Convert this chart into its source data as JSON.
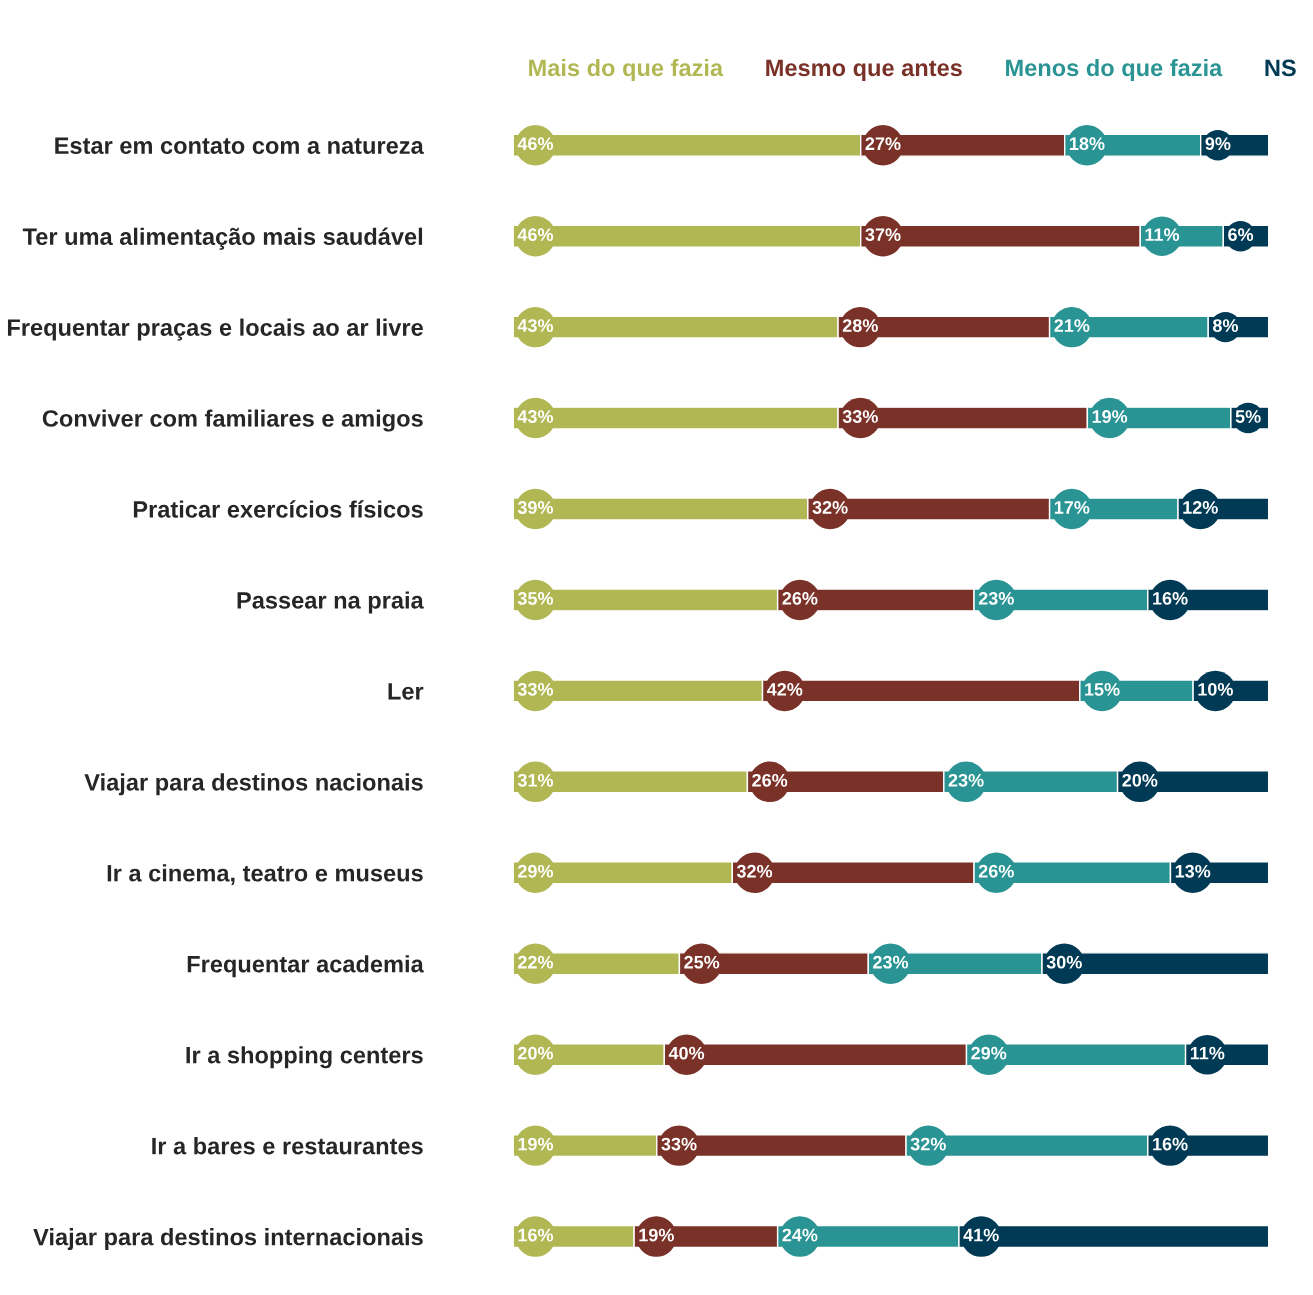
{
  "chart_data": {
    "type": "bar",
    "orientation": "horizontal",
    "stacked": true,
    "legend": "top",
    "tick_labels": "y",
    "categories": [
      "Estar em contato com a natureza",
      "Ter uma alimentação mais saudável",
      "Frequentar praças e locais ao ar livre",
      "Conviver com familiares e amigos",
      "Praticar exercícios físicos",
      "Passear na praia",
      "Ler",
      "Viajar para destinos nacionais",
      "Ir a cinema, teatro e museus",
      "Frequentar academia",
      "Ir a shopping centers",
      "Ir a bares e restaurantes",
      "Viajar para destinos internacionais"
    ],
    "series": [
      {
        "name": "Mais do que fazia",
        "color": "#b1b853",
        "values": [
          46,
          46,
          43,
          43,
          39,
          35,
          33,
          31,
          29,
          22,
          20,
          19,
          16
        ],
        "value_labels": [
          "46%",
          "46%",
          "43%",
          "43%",
          "39%",
          "35%",
          "33%",
          "31%",
          "29%",
          "22%",
          "20%",
          "19%",
          "16%"
        ]
      },
      {
        "name": "Mesmo que antes",
        "color": "#7a3228",
        "values": [
          27,
          37,
          28,
          33,
          32,
          26,
          42,
          26,
          32,
          25,
          40,
          33,
          19
        ],
        "value_labels": [
          "27%",
          "37%",
          "28%",
          "33%",
          "32%",
          "26%",
          "42%",
          "26%",
          "32%",
          "25%",
          "40%",
          "33%",
          "19%"
        ]
      },
      {
        "name": "Menos do que fazia",
        "color": "#2a9494",
        "values": [
          18,
          11,
          21,
          19,
          17,
          23,
          15,
          23,
          26,
          23,
          29,
          32,
          24
        ],
        "value_labels": [
          "18%",
          "11%",
          "21%",
          "19%",
          "17%",
          "23%",
          "15%",
          "23%",
          "26%",
          "23%",
          "29%",
          "32%",
          "24%"
        ]
      },
      {
        "name": "NS",
        "color": "#003a54",
        "values": [
          9,
          6,
          8,
          5,
          12,
          16,
          10,
          20,
          13,
          30,
          11,
          16,
          41
        ],
        "value_labels": [
          "9%",
          "6%",
          "8%",
          "5%",
          "12%",
          "16%",
          "10%",
          "20%",
          "13%",
          "30%",
          "11%",
          "16%",
          "41%"
        ]
      }
    ]
  }
}
